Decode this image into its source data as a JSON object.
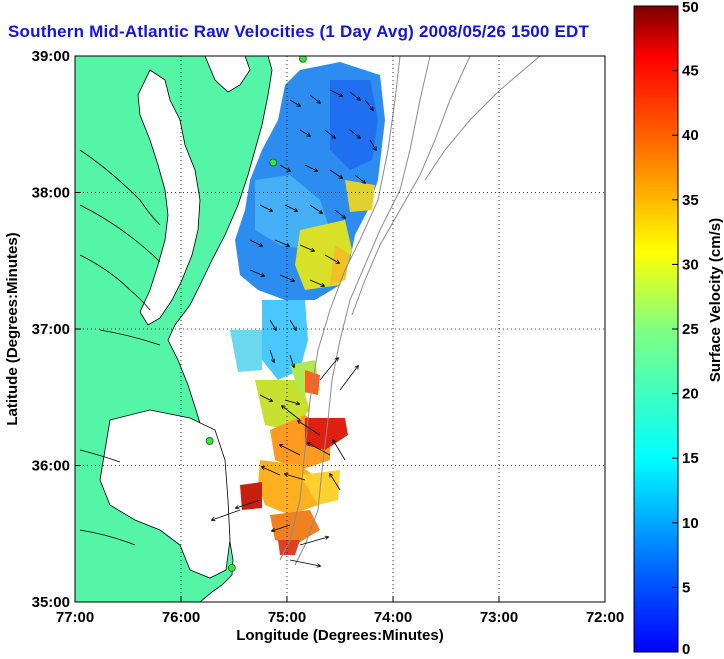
{
  "title": "Southern Mid-Atlantic Raw Velocities (1 Day Avg) 2008/05/26 1500 EDT",
  "map": {
    "xlabel": "Longitude (Degrees:Minutes)",
    "ylabel": "Latitude (Degrees:Minutes)",
    "x_ticks": [
      "77:00",
      "76:00",
      "75:00",
      "74:00",
      "73:00",
      "72:00"
    ],
    "y_ticks": [
      "39:00",
      "38:00",
      "37:00",
      "36:00",
      "35:00"
    ],
    "lon_range": [
      -77,
      -72
    ],
    "lat_range": [
      35,
      39
    ],
    "land_color": "#55f5a8",
    "grid": "dotted"
  },
  "colorbar": {
    "label": "Surface Velocity (cm/s)",
    "ticks": [
      "50",
      "45",
      "40",
      "35",
      "30",
      "25",
      "20",
      "15",
      "10",
      "5",
      "0"
    ],
    "range": [
      0,
      50
    ],
    "colormap": "jet"
  },
  "stations": [
    {
      "lon": -74.85,
      "lat": 38.98
    },
    {
      "lon": -75.13,
      "lat": 38.22
    },
    {
      "lon": -75.73,
      "lat": 36.18
    },
    {
      "lon": -75.52,
      "lat": 35.25
    }
  ]
}
